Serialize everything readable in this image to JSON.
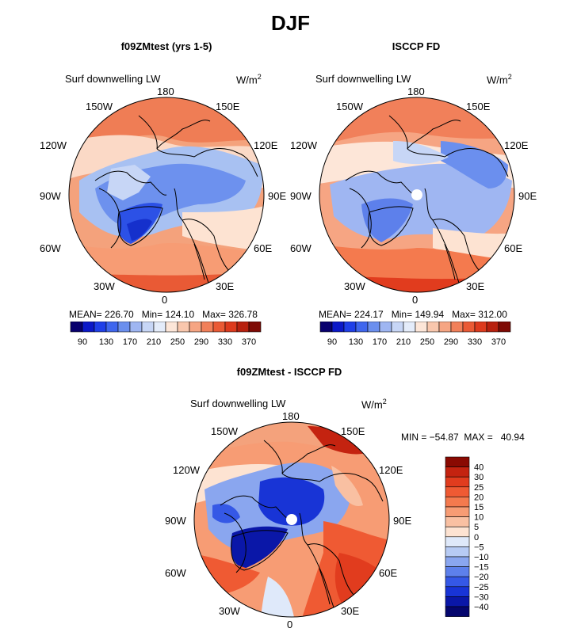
{
  "title": "DJF",
  "panels": [
    {
      "id": "model",
      "title": "f09ZMtest (yrs 1-5)",
      "variable": "Surf downwelling LW",
      "units": "W/m",
      "units_exp": "2",
      "stats": {
        "mean_label": "MEAN=",
        "mean": "226.70",
        "min_label": "Min=",
        "min": "124.10",
        "max_label": "Max=",
        "max": "326.78"
      }
    },
    {
      "id": "obs",
      "title": "ISCCP FD",
      "variable": "Surf downwelling LW",
      "units": "W/m",
      "units_exp": "2",
      "stats": {
        "mean_label": "MEAN=",
        "mean": "224.17",
        "min_label": "Min=",
        "min": "149.94",
        "max_label": "Max=",
        "max": "312.00"
      }
    },
    {
      "id": "diff",
      "title": "f09ZMtest - ISCCP FD",
      "variable": "Surf downwelling LW",
      "units": "W/m",
      "units_exp": "2",
      "minmax": "MIN = −54.87  MAX =   40.94"
    }
  ],
  "longitude_labels": [
    "180",
    "150E",
    "120E",
    "90E",
    "60E",
    "30E",
    "0",
    "30W",
    "60W",
    "90W",
    "120W",
    "150W"
  ],
  "colorbar_abs": {
    "labels": [
      "90",
      "130",
      "170",
      "210",
      "250",
      "290",
      "330",
      "370"
    ],
    "colors": [
      "#08006e",
      "#0b18c8",
      "#1f3fe8",
      "#3f66ee",
      "#6b8fee",
      "#9fb6f2",
      "#c7d6f6",
      "#e4ecfa",
      "#fde6d8",
      "#f9c7ad",
      "#f6a583",
      "#f1805a",
      "#ea5a35",
      "#dd3a1d",
      "#b8200e",
      "#7f0a04"
    ]
  },
  "colorbar_diff": {
    "labels": [
      "40",
      "30",
      "25",
      "20",
      "15",
      "10",
      "5",
      "0",
      "−5",
      "−10",
      "−15",
      "−20",
      "−25",
      "−30",
      "−40"
    ],
    "colors": [
      "#8a0a02",
      "#c42310",
      "#e13c1e",
      "#ef5a33",
      "#f47a4e",
      "#f79c74",
      "#f9c0a2",
      "#fde3d2",
      "#dfe9fa",
      "#b7cbf4",
      "#8aa6ef",
      "#5d80eb",
      "#3558e6",
      "#1834d6",
      "#0a17a8",
      "#05066e"
    ]
  }
}
